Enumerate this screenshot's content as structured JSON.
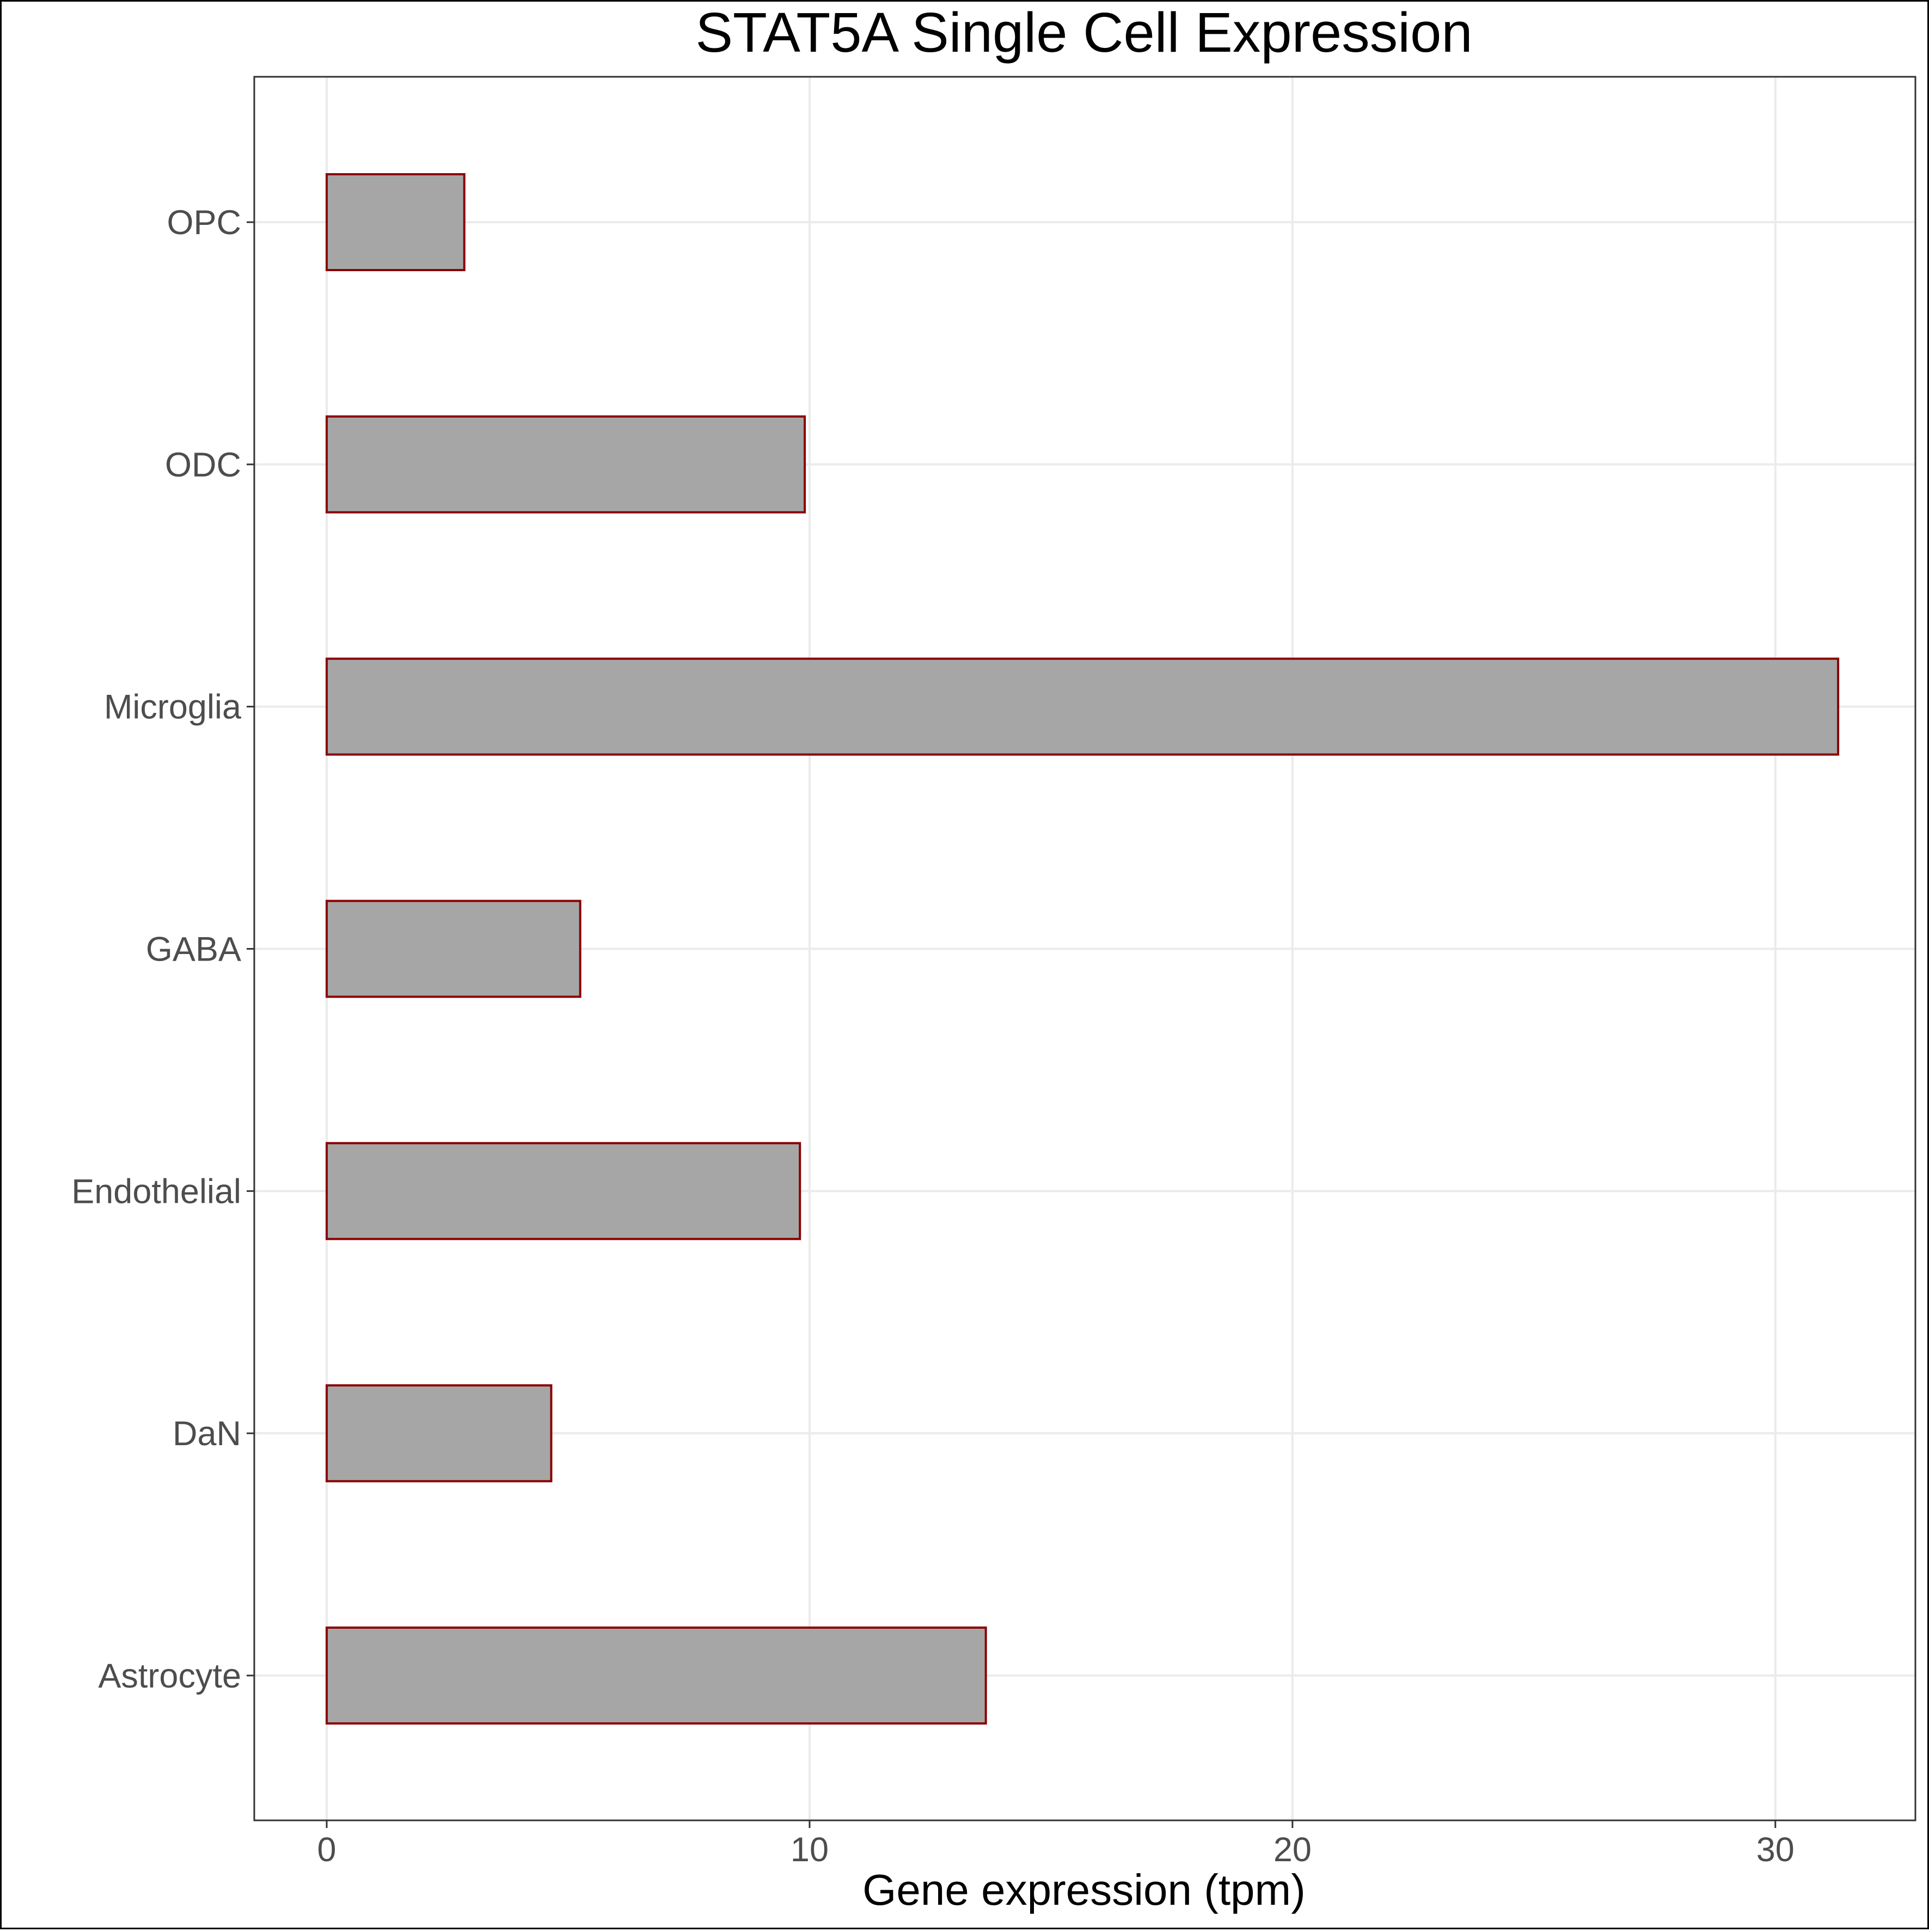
{
  "chart_data": {
    "type": "bar",
    "orientation": "horizontal",
    "title": "STAT5A Single Cell Expression",
    "xlabel": "Gene expression (tpm)",
    "ylabel": "",
    "categories": [
      "OPC",
      "ODC",
      "Microglia",
      "GABA",
      "Endothelial",
      "DaN",
      "Astrocyte"
    ],
    "values": [
      2.85,
      9.9,
      31.3,
      5.25,
      9.8,
      4.65,
      13.65
    ],
    "xlim": [
      -1.5,
      32.9
    ],
    "xticks": [
      0,
      10,
      20,
      30
    ],
    "grid": true,
    "legend": "none",
    "colors": {
      "bar_fill": "#a6a6a6",
      "bar_stroke": "#8b0000",
      "grid": "#ebebeb",
      "frame": "#333333"
    }
  }
}
